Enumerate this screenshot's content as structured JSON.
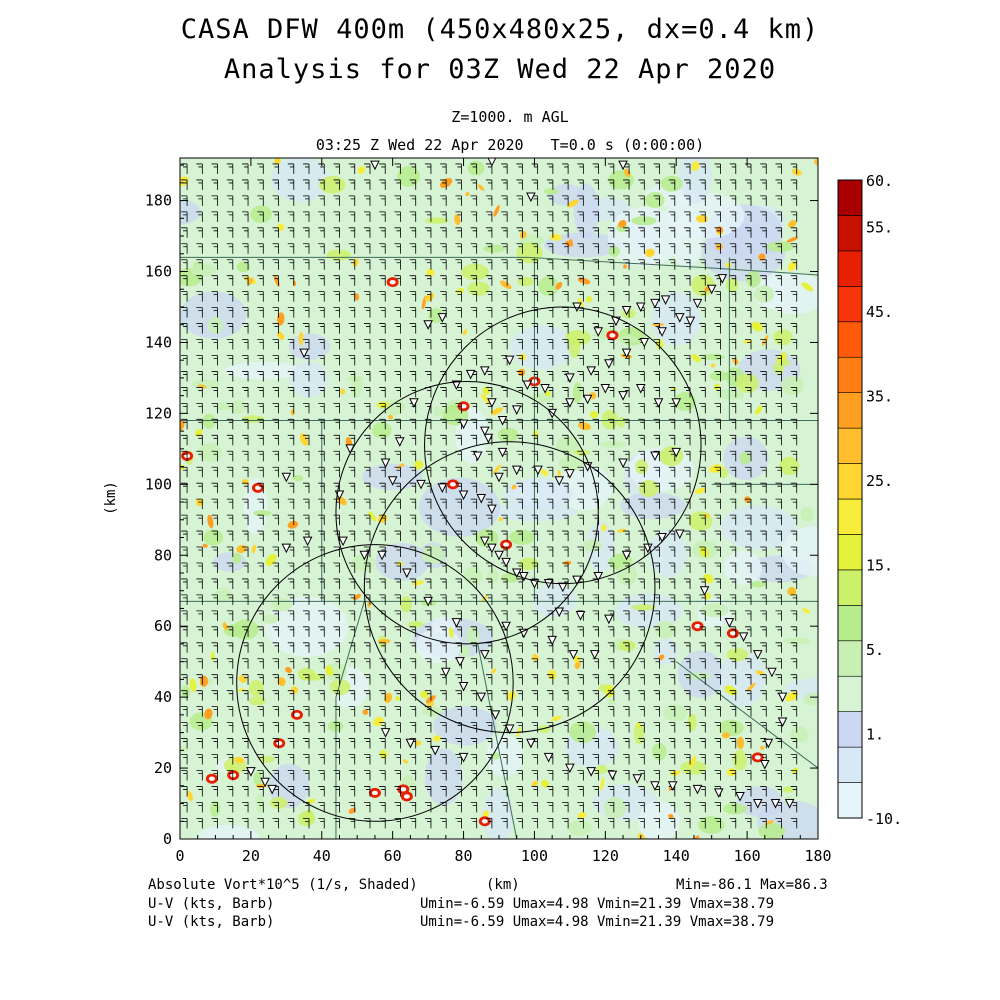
{
  "header": {
    "title_line1": "CASA DFW 400m (450x480x25, dx=0.4 km)",
    "title_line2": "Analysis for 03Z Wed 22 Apr 2020",
    "subtitle_line1": "Z=1000. m AGL",
    "subtitle_line2": "03:25 Z Wed 22 Apr 2020   T=0.0 s (0:00:00)"
  },
  "footer": {
    "field_label": "Absolute Vort*10^5 (1/s, Shaded)",
    "xunit": "(km)",
    "minmax": "Min=-86.1 Max=86.3",
    "barb1_label": "U-V (kts, Barb)",
    "barb1_stats": "Umin=-6.59 Umax=4.98 Vmin=21.39 Vmax=38.79",
    "barb2_label": "U-V (kts, Barb)",
    "barb2_stats": "Umin=-6.59 Umax=4.98 Vmin=21.39 Vmax=38.79"
  },
  "chart_data": {
    "type": "heatmap",
    "xlabel": "",
    "ylabel": "(km)",
    "xlim": [
      0,
      180
    ],
    "ylim": [
      0,
      192
    ],
    "xticks": [
      0,
      20,
      40,
      60,
      80,
      100,
      120,
      140,
      160,
      180
    ],
    "yticks": [
      0,
      20,
      40,
      60,
      80,
      100,
      120,
      140,
      160,
      180
    ],
    "xtick_labels": [
      "0",
      "20",
      "40",
      "60",
      "80",
      "100",
      "120",
      "140",
      "160",
      "180"
    ],
    "ytick_labels": [
      "0",
      "20",
      "40",
      "60",
      "80",
      "100",
      "120",
      "140",
      "160",
      "180"
    ],
    "colorbar": {
      "levels": [
        -10,
        1,
        5,
        15,
        25,
        35,
        45,
        55,
        60
      ],
      "labels": [
        "-10.",
        "1.",
        "5.",
        "15.",
        "25.",
        "35.",
        "45.",
        "55.",
        "60."
      ],
      "colors": [
        "#e6f4fa",
        "#d7e8f7",
        "#cbd7f3",
        "#d6f3d4",
        "#c8f0b4",
        "#b6ec8c",
        "#ccf06a",
        "#e5f23c",
        "#f8ec3a",
        "#ffd532",
        "#ffbe2e",
        "#ff9f22",
        "#ff7d12",
        "#ff5a0a",
        "#f8350a",
        "#e62000",
        "#c81000",
        "#a80000"
      ]
    },
    "radar_rings": [
      {
        "cx": 108,
        "cy": 111,
        "r": 39
      },
      {
        "cx": 81,
        "cy": 92,
        "r": 37
      },
      {
        "cx": 93,
        "cy": 71,
        "r": 41
      },
      {
        "cx": 55,
        "cy": 44,
        "r": 39
      }
    ],
    "station_markers": [
      [
        55,
        190
      ],
      [
        88,
        191
      ],
      [
        125,
        190
      ],
      [
        99,
        181
      ],
      [
        74,
        147
      ],
      [
        70,
        145
      ],
      [
        35,
        137
      ],
      [
        66,
        123
      ],
      [
        62,
        112
      ],
      [
        48,
        110
      ],
      [
        58,
        106
      ],
      [
        60,
        101
      ],
      [
        68,
        100
      ],
      [
        74,
        99
      ],
      [
        80,
        97
      ],
      [
        85,
        96
      ],
      [
        88,
        93
      ],
      [
        90,
        102
      ],
      [
        95,
        104
      ],
      [
        101,
        104
      ],
      [
        107,
        101
      ],
      [
        110,
        103
      ],
      [
        115,
        105
      ],
      [
        125,
        106
      ],
      [
        134,
        108
      ],
      [
        140,
        109
      ],
      [
        30,
        102
      ],
      [
        45,
        97
      ],
      [
        87,
        113
      ],
      [
        91,
        109
      ],
      [
        80,
        117
      ],
      [
        86,
        115
      ],
      [
        91,
        118
      ],
      [
        95,
        121
      ],
      [
        105,
        120
      ],
      [
        110,
        123
      ],
      [
        115,
        124
      ],
      [
        120,
        127
      ],
      [
        125,
        125
      ],
      [
        130,
        127
      ],
      [
        135,
        123
      ],
      [
        140,
        123
      ],
      [
        84,
        108
      ],
      [
        88,
        123
      ],
      [
        78,
        128
      ],
      [
        82,
        131
      ],
      [
        86,
        132
      ],
      [
        93,
        135
      ],
      [
        98,
        128
      ],
      [
        103,
        127
      ],
      [
        110,
        130
      ],
      [
        116,
        132
      ],
      [
        121,
        134
      ],
      [
        126,
        137
      ],
      [
        131,
        140
      ],
      [
        136,
        143
      ],
      [
        141,
        147
      ],
      [
        146,
        151
      ],
      [
        150,
        155
      ],
      [
        153,
        158
      ],
      [
        144,
        146
      ],
      [
        123,
        146
      ],
      [
        112,
        150
      ],
      [
        118,
        143
      ],
      [
        126,
        149
      ],
      [
        130,
        150
      ],
      [
        134,
        151
      ],
      [
        137,
        152
      ],
      [
        86,
        84
      ],
      [
        88,
        82
      ],
      [
        90,
        80
      ],
      [
        92,
        78
      ],
      [
        95,
        75
      ],
      [
        97,
        74
      ],
      [
        100,
        72
      ],
      [
        104,
        72
      ],
      [
        108,
        71
      ],
      [
        112,
        73
      ],
      [
        118,
        74
      ],
      [
        126,
        80
      ],
      [
        132,
        82
      ],
      [
        136,
        85
      ],
      [
        141,
        86
      ],
      [
        92,
        60
      ],
      [
        97,
        58
      ],
      [
        105,
        56
      ],
      [
        111,
        52
      ],
      [
        117,
        52
      ],
      [
        113,
        63
      ],
      [
        121,
        62
      ],
      [
        107,
        64
      ],
      [
        86,
        52
      ],
      [
        79,
        50
      ],
      [
        75,
        47
      ],
      [
        80,
        43
      ],
      [
        85,
        40
      ],
      [
        89,
        35
      ],
      [
        93,
        31
      ],
      [
        99,
        27
      ],
      [
        104,
        23
      ],
      [
        110,
        20
      ],
      [
        116,
        19
      ],
      [
        122,
        18
      ],
      [
        129,
        17
      ],
      [
        134,
        15
      ],
      [
        139,
        15
      ],
      [
        146,
        14
      ],
      [
        152,
        13
      ],
      [
        158,
        12
      ],
      [
        163,
        10
      ],
      [
        168,
        10
      ],
      [
        172,
        10
      ],
      [
        20,
        19
      ],
      [
        24,
        16
      ],
      [
        26,
        14
      ],
      [
        148,
        70
      ],
      [
        155,
        61
      ],
      [
        159,
        57
      ],
      [
        163,
        52
      ],
      [
        167,
        47
      ],
      [
        170,
        40
      ],
      [
        170,
        33
      ],
      [
        166,
        27
      ],
      [
        165,
        21
      ],
      [
        58,
        30
      ],
      [
        65,
        27
      ],
      [
        72,
        25
      ],
      [
        80,
        23
      ],
      [
        78,
        61
      ],
      [
        70,
        67
      ],
      [
        64,
        75
      ],
      [
        57,
        80
      ],
      [
        52,
        80
      ],
      [
        46,
        84
      ],
      [
        36,
        84
      ],
      [
        30,
        82
      ]
    ]
  }
}
